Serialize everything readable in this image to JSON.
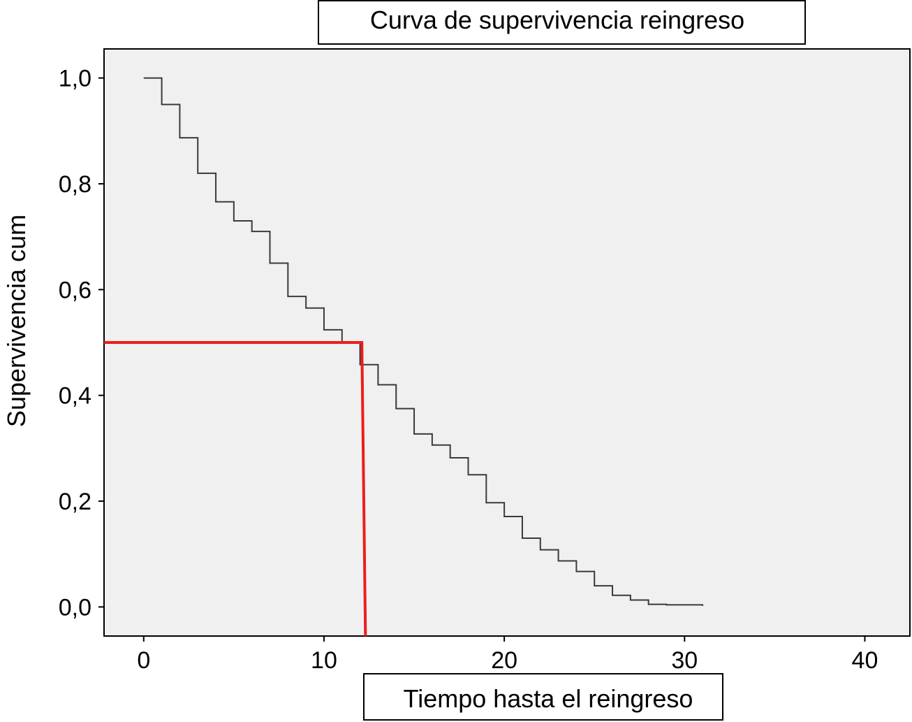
{
  "chart_data": {
    "type": "line",
    "subtype": "step",
    "title": "Curva de supervivencia reingreso",
    "xlabel": "Tiempo hasta el reingreso",
    "ylabel": "Supervivencia cum",
    "xlim": [
      -2.2,
      42.5
    ],
    "ylim": [
      -0.055,
      1.055
    ],
    "x_ticks": [
      0,
      10,
      20,
      30,
      40
    ],
    "x_tick_labels": [
      "0",
      "10",
      "20",
      "30",
      "40"
    ],
    "y_ticks": [
      0.0,
      0.2,
      0.4,
      0.6,
      0.8,
      1.0
    ],
    "y_tick_labels": [
      "0,0",
      "0,2",
      "0,4",
      "0,6",
      "0,8",
      "1,0"
    ],
    "grid": false,
    "legend": "none",
    "series": [
      {
        "x": [
          0,
          1,
          2,
          3,
          4,
          5,
          6,
          7,
          8,
          9,
          10,
          11,
          12,
          13,
          14,
          15,
          16,
          17,
          18,
          19,
          20,
          21,
          22,
          23,
          24,
          25,
          26,
          27,
          28,
          29,
          30,
          31
        ],
        "y": [
          1.0,
          0.95,
          0.887,
          0.82,
          0.766,
          0.73,
          0.71,
          0.65,
          0.587,
          0.565,
          0.524,
          0.5,
          0.458,
          0.42,
          0.375,
          0.327,
          0.306,
          0.282,
          0.25,
          0.197,
          0.171,
          0.13,
          0.108,
          0.087,
          0.067,
          0.04,
          0.022,
          0.013,
          0.005,
          0.004,
          0.004,
          0.002
        ],
        "color": "#3a3a3a"
      }
    ],
    "annotations": [
      {
        "type": "median-line",
        "y": 0.5,
        "x": 12.1,
        "x_bottom": 12.3,
        "color": "#ee1c1c"
      }
    ]
  }
}
